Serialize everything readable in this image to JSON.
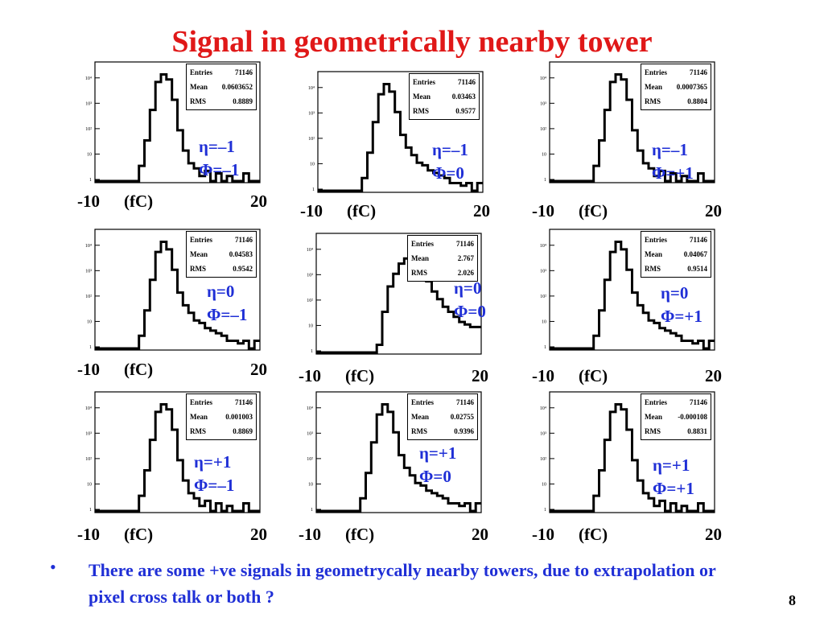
{
  "title": "Signal in geometrically nearby tower",
  "stat_labels": {
    "entries": "Entries",
    "mean": "Mean",
    "rms": "RMS"
  },
  "ytick_labels": [
    "10⁴",
    "10³",
    "10²",
    "10",
    "1"
  ],
  "panels": [
    {
      "entries": "71146",
      "mean": "0.0603652",
      "rms": "0.8889",
      "eta": "η=–1",
      "phi": "Φ=–1",
      "xmin": "-10",
      "unit": "(fC)",
      "xmax": "20",
      "shape": "A"
    },
    {
      "entries": "71146",
      "mean": "0.03463",
      "rms": "0.9577",
      "eta": "η=–1",
      "phi": "Φ=0",
      "xmin": "-10",
      "unit": "(fC)",
      "xmax": "20",
      "shape": "B"
    },
    {
      "entries": "71146",
      "mean": "0.0007365",
      "rms": "0.8804",
      "eta": "η=–1",
      "phi": "Φ=+1",
      "xmin": "-10",
      "unit": "(fC)",
      "xmax": "20",
      "shape": "A"
    },
    {
      "entries": "71146",
      "mean": "0.04583",
      "rms": "0.9542",
      "eta": "η=0",
      "phi": "Φ=–1",
      "xmin": "-10",
      "unit": "(fC)",
      "xmax": "20",
      "shape": "B"
    },
    {
      "entries": "71146",
      "mean": "2.767",
      "rms": "2.026",
      "eta": "η=0",
      "phi": "Φ=0",
      "xmin": "-10",
      "unit": "(fC)",
      "xmax": "20",
      "shape": "C"
    },
    {
      "entries": "71146",
      "mean": "0.04067",
      "rms": "0.9514",
      "eta": "η=0",
      "phi": "Φ=+1",
      "xmin": "-10",
      "unit": "(fC)",
      "xmax": "20",
      "shape": "B"
    },
    {
      "entries": "71146",
      "mean": "0.001003",
      "rms": "0.8869",
      "eta": "η=+1",
      "phi": "Φ=–1",
      "xmin": "-10",
      "unit": "(fC)",
      "xmax": "20",
      "shape": "A"
    },
    {
      "entries": "71146",
      "mean": "0.02755",
      "rms": "0.9396",
      "eta": "η=+1",
      "phi": "Φ=0",
      "xmin": "-10",
      "unit": "(fC)",
      "xmax": "20",
      "shape": "B"
    },
    {
      "entries": "71146",
      "mean": "-0.000108",
      "rms": "0.8831",
      "eta": "η=+1",
      "phi": "Φ=+1",
      "xmin": "-10",
      "unit": "(fC)",
      "xmax": "20",
      "shape": "A"
    }
  ],
  "histogram_shapes": {
    "A": [
      0,
      0,
      0,
      0,
      0,
      0,
      0,
      0,
      0.6,
      1.6,
      2.8,
      3.9,
      4.2,
      4.0,
      3.2,
      2.0,
      1.2,
      0.7,
      0.5,
      0.2,
      0.4,
      0,
      0.3,
      0,
      0.2,
      0,
      0,
      0.3,
      0,
      0
    ],
    "B": [
      0,
      0,
      0,
      0,
      0,
      0,
      0,
      0,
      0.5,
      1.5,
      2.7,
      3.8,
      4.2,
      3.9,
      3.1,
      2.2,
      1.7,
      1.4,
      1.1,
      1.0,
      0.8,
      0.7,
      0.6,
      0.5,
      0.3,
      0.3,
      0.2,
      0.3,
      0,
      0.3
    ],
    "C": [
      0,
      0,
      0,
      0,
      0,
      0,
      0,
      0,
      0,
      0,
      0,
      0.3,
      1.6,
      2.6,
      3.1,
      3.5,
      3.7,
      3.6,
      3.4,
      3.1,
      2.8,
      2.4,
      2.1,
      1.8,
      1.6,
      1.4,
      1.2,
      1.1,
      1.0,
      1.0
    ]
  },
  "note": "There are some +ve signals in geometrycally nearby towers, due to extrapolation or pixel cross talk or both ?",
  "bullet": "•",
  "page_number": "8"
}
